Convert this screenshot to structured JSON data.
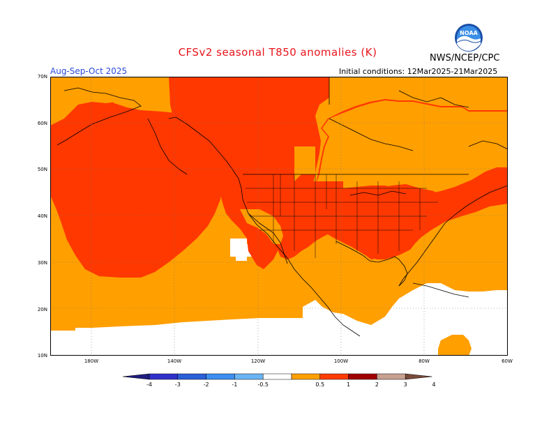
{
  "title": "CFSv2 seasonal T850 anomalies (K)",
  "agency": "NWS/NCEP/CPC",
  "logo_text": "NOAA",
  "valid_period": "Aug-Sep-Oct 2025",
  "initial_conditions": "Initial conditions: 12Mar2025-21Mar2025",
  "lat_labels": [
    "70N",
    "60N",
    "50N",
    "40N",
    "30N",
    "20N",
    "10N"
  ],
  "lon_labels": [
    "180W",
    "140W",
    "120W",
    "100W",
    "80W",
    "60W"
  ],
  "colorbar": {
    "ticks": [
      "-4",
      "-3",
      "-2",
      "-1",
      "-0.5",
      "0.5",
      "1",
      "2",
      "3",
      "4"
    ],
    "colors": [
      "#1e1e7e",
      "#3030c8",
      "#2a5fd8",
      "#3c8ef0",
      "#6ab4f4",
      "#ffffff",
      "#ffa000",
      "#ff3c00",
      "#a00000",
      "#c8a090",
      "#7a4a3a"
    ]
  },
  "legend_colors": {
    "0.5-1": "#ff9f00",
    "1-2": "#ff3800",
    "below 0.5": "#ffffff"
  }
}
